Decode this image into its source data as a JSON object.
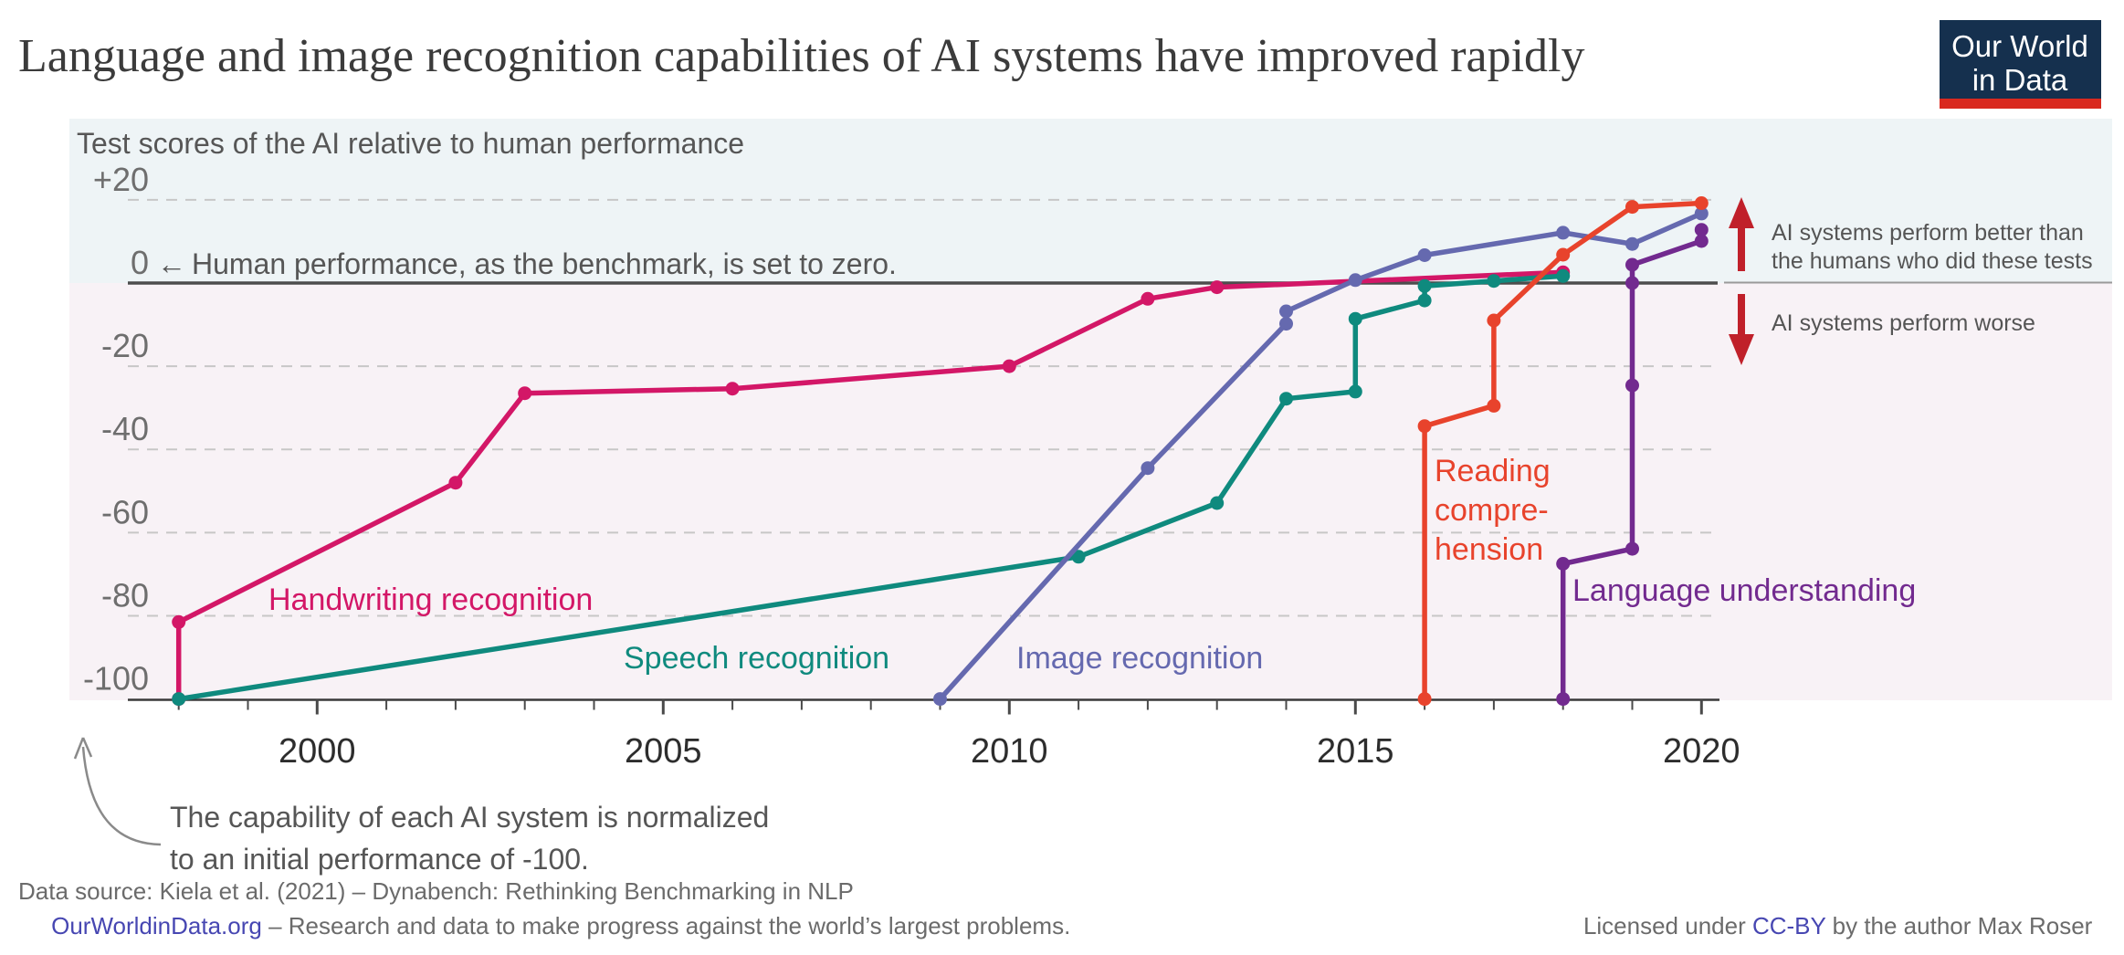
{
  "title": "Language and image recognition capabilities of AI systems have improved rapidly",
  "logo": {
    "line1": "Our World",
    "line2": "in Data",
    "bg_color": "#15304e",
    "stripe_color": "#d9291f"
  },
  "annotations": {
    "zero_arrow": "←",
    "zero_note": "Human performance, as the benchmark, is set to zero.",
    "normalized_line1": "The capability of each AI system is normalized",
    "normalized_line2": "to an initial performance of -100.",
    "better_line1": "AI systems perform better than",
    "better_line2": "the humans who did these tests",
    "worse": "AI systems perform worse",
    "arrow_color": "#c0202a"
  },
  "footer": {
    "source": "Data source: Kiela et al. (2021) – Dynabench: Rethinking Benchmarking in NLP",
    "site_link": "OurWorldinData.org",
    "site_rest": " – Research and data to make progress against the world’s largest problems.",
    "license_pre": "Licensed under ",
    "license_link": "CC-BY",
    "license_post": " by the author Max Roser",
    "link_color": "#4747b2"
  },
  "chart_data": {
    "type": "line",
    "title": "Language and image recognition capabilities of AI systems have improved rapidly",
    "ylabel": "Test scores of the AI relative to human performance",
    "xlabel": "",
    "ylim": [
      -100,
      20
    ],
    "xlim": [
      1998,
      2020
    ],
    "grid": "dashed horizontal",
    "legend_position": "inline labels on lines",
    "y_ticks": [
      {
        "value": 20,
        "label": "+20"
      },
      {
        "value": 0,
        "label": "0"
      },
      {
        "value": -20,
        "label": "-20"
      },
      {
        "value": -40,
        "label": "-40"
      },
      {
        "value": -60,
        "label": "-60"
      },
      {
        "value": -80,
        "label": "-80"
      },
      {
        "value": -100,
        "label": "-100"
      }
    ],
    "y_gridlines": [
      20,
      -20,
      -40,
      -60,
      -80
    ],
    "x_ticks_labeled": [
      2000,
      2005,
      2010,
      2015,
      2020
    ],
    "x_ticks_minor": [
      1998,
      1999,
      2000,
      2001,
      2002,
      2003,
      2004,
      2005,
      2006,
      2007,
      2008,
      2009,
      2010,
      2011,
      2012,
      2013,
      2014,
      2015,
      2016,
      2017,
      2018,
      2019,
      2020
    ],
    "series": [
      {
        "name": "Handwriting recognition",
        "color": "#d31767",
        "points": [
          [
            1998,
            -100
          ],
          [
            1998,
            -81.5
          ],
          [
            2002,
            -48
          ],
          [
            2003,
            -26.5
          ],
          [
            2006,
            -25.4
          ],
          [
            2010,
            -20
          ],
          [
            2012,
            -3.8
          ],
          [
            2013,
            -1
          ],
          [
            2018,
            2.6
          ]
        ]
      },
      {
        "name": "Speech recognition",
        "color": "#0f8a7e",
        "points": [
          [
            1998,
            -100
          ],
          [
            2011,
            -65.8
          ],
          [
            2013,
            -52.9
          ],
          [
            2014,
            -27.8
          ],
          [
            2015,
            -26.1
          ],
          [
            2015,
            -8.6
          ],
          [
            2016,
            -4.2
          ],
          [
            2016,
            -0.7
          ],
          [
            2017,
            0.5
          ],
          [
            2018,
            1.7
          ]
        ]
      },
      {
        "name": "Image recognition",
        "color": "#6569af",
        "points": [
          [
            2009,
            -100
          ],
          [
            2012,
            -44.5
          ],
          [
            2014,
            -9.8
          ],
          [
            2014,
            -6.8
          ],
          [
            2015,
            0.7
          ],
          [
            2016,
            6.7
          ],
          [
            2018,
            12.1
          ],
          [
            2019,
            9.4
          ],
          [
            2020,
            16.7
          ]
        ]
      },
      {
        "name": "Reading comprehension",
        "color": "#e8432c",
        "label_lines": [
          "Reading",
          "compre-",
          "hension"
        ],
        "points": [
          [
            2016,
            -100
          ],
          [
            2016,
            -34.4
          ],
          [
            2017,
            -29.5
          ],
          [
            2017,
            -9
          ],
          [
            2018,
            6.8
          ],
          [
            2019,
            18.3
          ],
          [
            2020,
            19.2
          ]
        ]
      },
      {
        "name": "Language understanding",
        "color": "#722a8f",
        "points": [
          [
            2018,
            -100
          ],
          [
            2018,
            -67.5
          ],
          [
            2019,
            -63.9
          ],
          [
            2019,
            -24.6
          ],
          [
            2019,
            0
          ],
          [
            2019,
            4.4
          ],
          [
            2020,
            10.1
          ],
          [
            2020,
            12.8
          ]
        ]
      }
    ],
    "plot_bg_above_zero": "#eef4f6",
    "plot_bg_below_zero": "#f8f2f6"
  }
}
